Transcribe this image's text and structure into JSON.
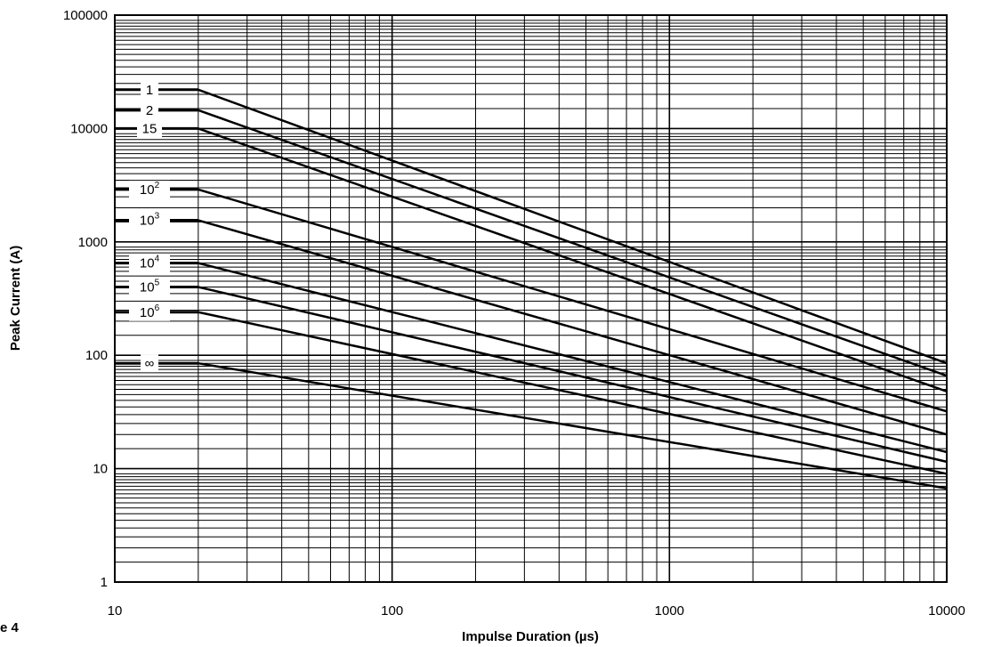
{
  "figure_label": "e 4",
  "chart_data": {
    "type": "line",
    "xscale": "log",
    "yscale": "log",
    "xlim": [
      10,
      10000
    ],
    "ylim": [
      1,
      100000
    ],
    "xlabel": "Impulse Duration (µs)",
    "ylabel": "Peak Current (A)",
    "xticks": [
      "10",
      "100",
      "1000",
      "10000"
    ],
    "yticks": [
      "1",
      "10",
      "100",
      "1000",
      "10000",
      "100000"
    ],
    "grid": true,
    "series": [
      {
        "name": "1",
        "base": "1",
        "exp": "",
        "x": [
          20,
          10000
        ],
        "y": [
          22000,
          85
        ]
      },
      {
        "name": "2",
        "base": "2",
        "exp": "",
        "x": [
          20,
          10000
        ],
        "y": [
          14500,
          66
        ]
      },
      {
        "name": "15",
        "base": "15",
        "exp": "",
        "x": [
          20,
          10000
        ],
        "y": [
          10000,
          48
        ]
      },
      {
        "name": "10^2",
        "base": "10",
        "exp": "2",
        "x": [
          20,
          10000
        ],
        "y": [
          2900,
          32
        ]
      },
      {
        "name": "10^3",
        "base": "10",
        "exp": "3",
        "x": [
          20,
          10000
        ],
        "y": [
          1550,
          20
        ]
      },
      {
        "name": "10^4",
        "base": "10",
        "exp": "4",
        "x": [
          20,
          10000
        ],
        "y": [
          650,
          14
        ]
      },
      {
        "name": "10^5",
        "base": "10",
        "exp": "5",
        "x": [
          20,
          10000
        ],
        "y": [
          400,
          11.5
        ]
      },
      {
        "name": "10^6",
        "base": "10",
        "exp": "6",
        "x": [
          20,
          10000
        ],
        "y": [
          240,
          9
        ]
      },
      {
        "name": "∞",
        "base": "∞",
        "exp": "",
        "x": [
          20,
          10000
        ],
        "y": [
          85,
          6.7
        ]
      }
    ]
  }
}
